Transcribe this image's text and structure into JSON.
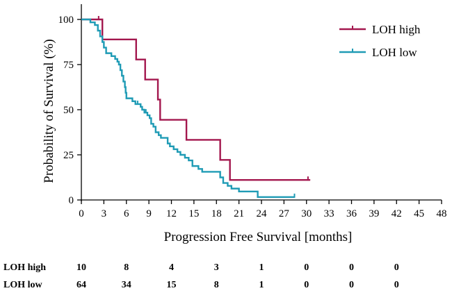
{
  "chart_data": {
    "type": "line",
    "subtype": "kaplan-meier",
    "xlabel": "Progression Free Survival [months]",
    "ylabel": "Probability of Survival (%)",
    "xlim": [
      0,
      48
    ],
    "ylim": [
      0,
      100
    ],
    "xticks": [
      0,
      3,
      6,
      9,
      12,
      15,
      18,
      21,
      24,
      27,
      30,
      33,
      36,
      39,
      42,
      45,
      48
    ],
    "yticks": [
      0,
      25,
      50,
      75,
      100
    ],
    "grid": false,
    "legend_position": "top-right",
    "colors": {
      "LOH high": "#a3174e",
      "LOH low": "#1f9bb5"
    },
    "series": [
      {
        "name": "LOH high",
        "steps": [
          [
            0,
            100
          ],
          [
            2.8,
            88.9
          ],
          [
            7.3,
            77.8
          ],
          [
            8.5,
            66.7
          ],
          [
            10.2,
            55.6
          ],
          [
            10.5,
            44.4
          ],
          [
            14,
            33.3
          ],
          [
            18.5,
            22.2
          ],
          [
            19.8,
            11.1
          ],
          [
            30.5,
            11.1
          ]
        ],
        "censored": [
          [
            2.3,
            100
          ],
          [
            10.2,
            55.6
          ],
          [
            30.2,
            11.1
          ]
        ]
      },
      {
        "name": "LOH low",
        "steps": [
          [
            0,
            100
          ],
          [
            1.2,
            98.4
          ],
          [
            1.8,
            96.9
          ],
          [
            2.2,
            93.8
          ],
          [
            2.5,
            90.6
          ],
          [
            2.8,
            87.5
          ],
          [
            3.0,
            84.4
          ],
          [
            3.3,
            81.3
          ],
          [
            4.0,
            79.7
          ],
          [
            4.5,
            78.1
          ],
          [
            4.8,
            76.6
          ],
          [
            5.0,
            75.0
          ],
          [
            5.2,
            71.9
          ],
          [
            5.4,
            68.8
          ],
          [
            5.6,
            65.6
          ],
          [
            5.8,
            62.5
          ],
          [
            5.9,
            59.4
          ],
          [
            6.0,
            56.3
          ],
          [
            6.8,
            54.7
          ],
          [
            7.2,
            53.1
          ],
          [
            7.9,
            51.6
          ],
          [
            8.1,
            50.0
          ],
          [
            8.4,
            48.4
          ],
          [
            8.8,
            46.9
          ],
          [
            9.1,
            45.3
          ],
          [
            9.3,
            42.2
          ],
          [
            9.6,
            40.6
          ],
          [
            9.9,
            37.5
          ],
          [
            10.3,
            35.9
          ],
          [
            10.6,
            34.4
          ],
          [
            11.5,
            31.3
          ],
          [
            11.8,
            29.7
          ],
          [
            12.3,
            28.1
          ],
          [
            12.8,
            26.6
          ],
          [
            13.2,
            25.0
          ],
          [
            13.8,
            23.4
          ],
          [
            14.3,
            21.9
          ],
          [
            14.8,
            18.8
          ],
          [
            15.6,
            17.2
          ],
          [
            16.1,
            15.6
          ],
          [
            18.5,
            12.5
          ],
          [
            18.9,
            9.4
          ],
          [
            19.5,
            7.8
          ],
          [
            20.0,
            6.3
          ],
          [
            21.0,
            4.7
          ],
          [
            23.5,
            1.6
          ],
          [
            28.4,
            1.6
          ]
        ],
        "censored": [
          [
            7.5,
            53.1
          ],
          [
            8.6,
            48.4
          ],
          [
            28.4,
            1.6
          ]
        ]
      }
    ],
    "risk_table": {
      "times": [
        0,
        6,
        12,
        18,
        24,
        30,
        36,
        42
      ],
      "rows": [
        {
          "label": "LOH high",
          "values": [
            "10",
            "8",
            "4",
            "3",
            "1",
            "0",
            "0",
            "0"
          ]
        },
        {
          "label": "LOH low",
          "values": [
            "64",
            "34",
            "15",
            "8",
            "1",
            "0",
            "0",
            "0"
          ]
        }
      ]
    }
  }
}
